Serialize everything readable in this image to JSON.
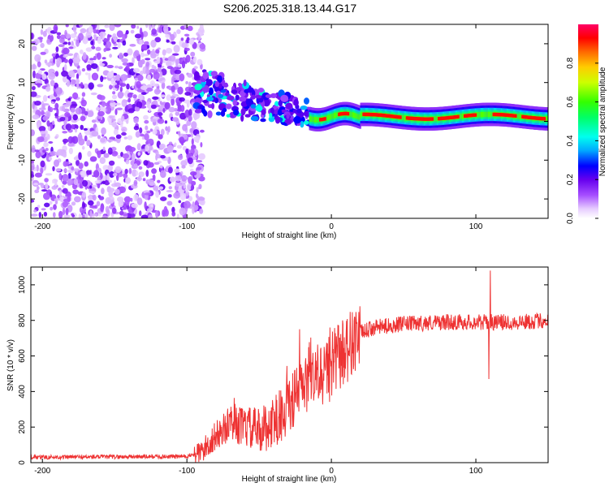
{
  "title": "S206.2025.318.13.44.G17",
  "chart_data": [
    {
      "type": "heatmap",
      "xlabel": "Height of straight line (km)",
      "ylabel": "Frequency (Hz)",
      "xlim": [
        -208,
        150
      ],
      "ylim": [
        -25,
        25
      ],
      "x_ticks": [
        "-200",
        "-100",
        "0",
        "100"
      ],
      "x_tick_values": [
        -200,
        -100,
        0,
        100
      ],
      "y_ticks": [
        "-20",
        "-10",
        "0",
        "10",
        "20"
      ],
      "y_tick_values": [
        -20,
        -10,
        0,
        10,
        20
      ],
      "regions": [
        {
          "name": "noise",
          "x_range": [
            -208,
            -95
          ],
          "freq_range": [
            -25,
            25
          ],
          "amplitude": [
            0.0,
            0.2
          ]
        },
        {
          "name": "transition",
          "x_range": [
            -95,
            -15
          ],
          "freq_range": [
            -6,
            10
          ],
          "amplitude": [
            0.1,
            0.5
          ]
        },
        {
          "name": "line",
          "x_range": [
            -15,
            150
          ],
          "freq_center": [
            0.5,
            2
          ],
          "amplitude": [
            0.5,
            1.0
          ]
        }
      ],
      "colorbar": {
        "label": "Normalized spectral amplitude",
        "ticks": [
          "0.0",
          "0.2",
          "0.4",
          "0.6",
          "0.8"
        ],
        "tick_values": [
          0.0,
          0.2,
          0.4,
          0.6,
          0.8
        ],
        "range": [
          0,
          1
        ]
      }
    },
    {
      "type": "line",
      "xlabel": "Height of straight line (km)",
      "ylabel": "SNR (10 * v/v)",
      "xlim": [
        -208,
        150
      ],
      "ylim": [
        0,
        1100
      ],
      "x_ticks": [
        "-200",
        "-100",
        "0",
        "100"
      ],
      "x_tick_values": [
        -200,
        -100,
        0,
        100
      ],
      "y_ticks": [
        "0",
        "200",
        "400",
        "600",
        "800",
        "1000"
      ],
      "y_tick_values": [
        0,
        200,
        400,
        600,
        800,
        1000
      ],
      "series_color": "#ee3333",
      "trend_x": [
        -208,
        -100,
        -90,
        -80,
        -70,
        -60,
        -50,
        -40,
        -30,
        -20,
        -10,
        0,
        10,
        20,
        30,
        50,
        80,
        110,
        130,
        150
      ],
      "trend_y": [
        30,
        35,
        60,
        150,
        220,
        200,
        180,
        220,
        320,
        420,
        480,
        540,
        640,
        730,
        760,
        780,
        790,
        790,
        790,
        800
      ],
      "spikes": [
        {
          "x": 110,
          "y": 1080
        },
        {
          "x": 109,
          "y": 470
        },
        {
          "x": -22,
          "y": 750
        },
        {
          "x": -1,
          "y": 760
        }
      ]
    }
  ]
}
